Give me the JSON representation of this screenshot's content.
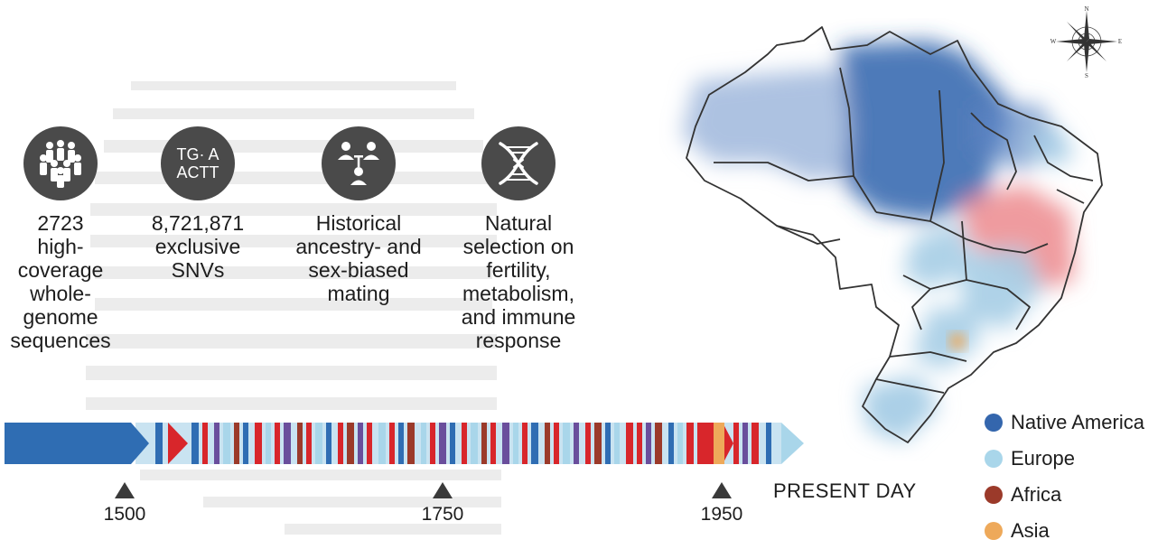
{
  "features": [
    {
      "name": "genomes",
      "icon": "people-group-icon",
      "lines": [
        "2723",
        "high-",
        "coverage",
        "whole-",
        "genome",
        "sequences"
      ]
    },
    {
      "name": "snvs",
      "icon": "dna-letters-icon",
      "icon_text": [
        "TG· A",
        "ACTT"
      ],
      "lines": [
        "8,721,871",
        "exclusive",
        "SNVs"
      ]
    },
    {
      "name": "mating",
      "icon": "pedigree-icon",
      "lines": [
        "Historical",
        "ancestry- and",
        "sex-biased",
        "mating"
      ]
    },
    {
      "name": "selection",
      "icon": "dna-helix-icon",
      "lines": [
        "Natural",
        "selection on",
        "fertility,",
        "metabolism,",
        "and immune",
        "response"
      ]
    }
  ],
  "timeline": {
    "ticks": [
      "1500",
      "1750",
      "1950"
    ],
    "present_label": "PRESENT DAY"
  },
  "legend": [
    {
      "label": "Native America",
      "color": "#3466ad"
    },
    {
      "label": "Europe",
      "color": "#a9d6ea"
    },
    {
      "label": "Africa",
      "color": "#9b3a2a"
    },
    {
      "label": "Asia",
      "color": "#eea95a"
    }
  ],
  "compass": {
    "n": "N",
    "s": "S",
    "e": "E",
    "w": "W"
  }
}
